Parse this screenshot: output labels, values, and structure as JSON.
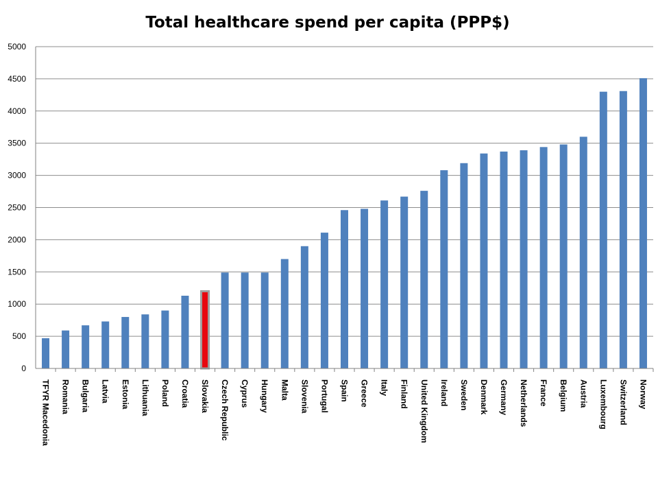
{
  "chart_data": {
    "type": "bar",
    "title": "Total healthcare spend per capita (PPP$)",
    "xlabel": "",
    "ylabel": "",
    "ylim": [
      0,
      5000
    ],
    "yticks": [
      0,
      500,
      1000,
      1500,
      2000,
      2500,
      3000,
      3500,
      4000,
      4500,
      5000
    ],
    "grid": true,
    "legend": "none",
    "categories": [
      "TFYR Macedonia",
      "Romania",
      "Bulgaria",
      "Latvia",
      "Estonia",
      "Lithuania",
      "Poland",
      "Croatia",
      "Slovakia",
      "Czech Republic",
      "Cyprus",
      "Hungary",
      "Malta",
      "Slovenia",
      "Portugal",
      "Spain",
      "Greece",
      "Italy",
      "Finland",
      "United Kingdom",
      "Ireland",
      "Sweden",
      "Denmark",
      "Germany",
      "Netherlands",
      "France",
      "Belgium",
      "Austria",
      "Luxembourg",
      "Switzerland",
      "Norway"
    ],
    "values": [
      470,
      590,
      670,
      730,
      800,
      840,
      900,
      1130,
      1200,
      1490,
      1490,
      1490,
      1700,
      1900,
      2110,
      2460,
      2480,
      2610,
      2670,
      2760,
      3080,
      3190,
      3340,
      3370,
      3390,
      3440,
      3480,
      3600,
      4300,
      4310,
      4510
    ],
    "highlight": "Slovakia",
    "colors": {
      "bar": "#4f81bd",
      "highlight_fill": "#e8070f",
      "highlight_outline": "#a0a0a0"
    }
  }
}
